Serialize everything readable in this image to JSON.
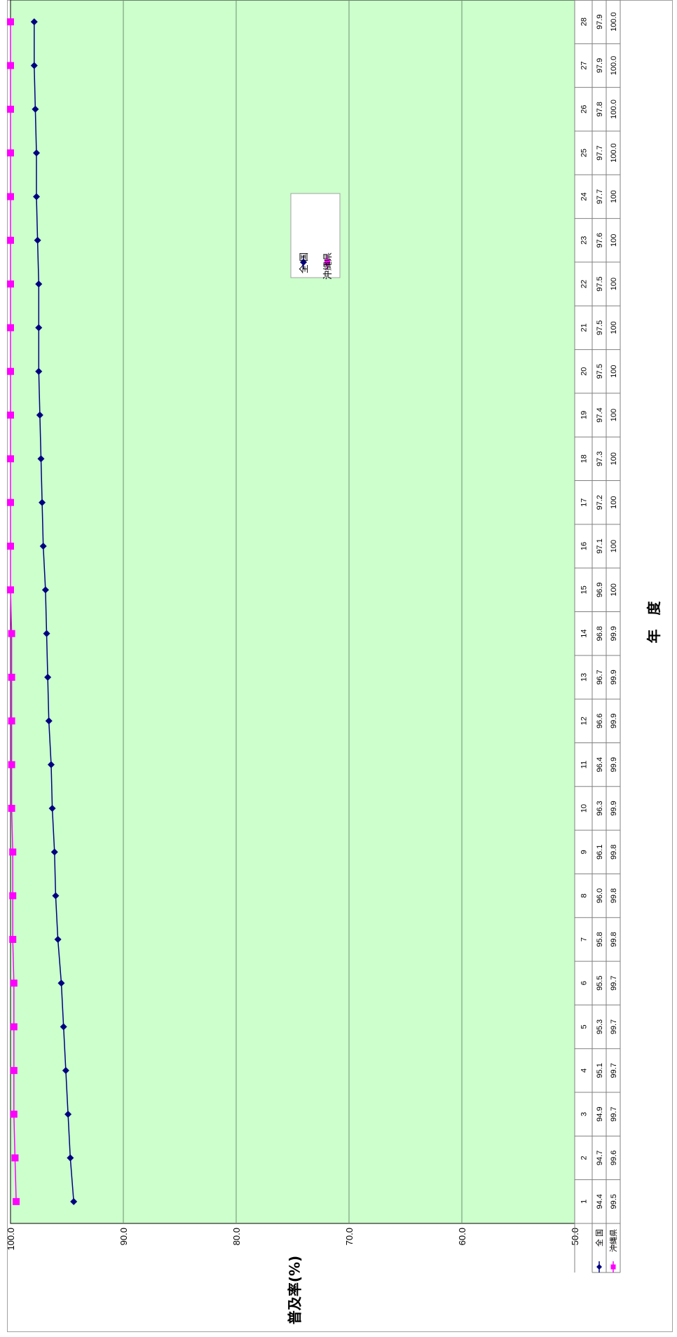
{
  "chart_data": {
    "type": "line",
    "orientation": "rotated-90-clockwise",
    "x_title": "年　度",
    "y_title": "普及率(%)",
    "y_ticks": [
      "100.0",
      "90.0",
      "80.0",
      "70.0",
      "60.0",
      "50.0"
    ],
    "ylim": [
      50,
      100
    ],
    "grid": true,
    "plot_background": "#ccffcc",
    "categories": [
      "1",
      "2",
      "3",
      "4",
      "5",
      "6",
      "7",
      "8",
      "9",
      "10",
      "11",
      "12",
      "13",
      "14",
      "15",
      "16",
      "17",
      "18",
      "19",
      "20",
      "21",
      "22",
      "23",
      "24",
      "25",
      "26",
      "27",
      "28"
    ],
    "series": [
      {
        "name": "全 国",
        "color": "#000080",
        "marker": "diamond",
        "values": [
          94.4,
          94.7,
          94.9,
          95.1,
          95.3,
          95.5,
          95.8,
          96.0,
          96.1,
          96.3,
          96.4,
          96.6,
          96.7,
          96.8,
          96.9,
          97.1,
          97.2,
          97.3,
          97.4,
          97.5,
          97.5,
          97.5,
          97.6,
          97.7,
          97.7,
          97.8,
          97.9,
          97.9
        ],
        "labels": [
          "94.4",
          "94.7",
          "94.9",
          "95.1",
          "95.3",
          "95.5",
          "95.8",
          "96.0",
          "96.1",
          "96.3",
          "96.4",
          "96.6",
          "96.7",
          "96.8",
          "96.9",
          "97.1",
          "97.2",
          "97.3",
          "97.4",
          "97.5",
          "97.5",
          "97.5",
          "97.6",
          "97.7",
          "97.7",
          "97.8",
          "97.9",
          "97.9"
        ]
      },
      {
        "name": "沖縄県",
        "color": "#ff00ff",
        "marker": "square",
        "values": [
          99.5,
          99.6,
          99.7,
          99.7,
          99.7,
          99.7,
          99.8,
          99.8,
          99.8,
          99.9,
          99.9,
          99.9,
          99.9,
          99.9,
          100,
          100,
          100,
          100,
          100,
          100,
          100,
          100,
          100,
          100,
          100,
          100.0,
          100.0,
          100.0
        ],
        "labels": [
          "99.5",
          "99.6",
          "99.7",
          "99.7",
          "99.7",
          "99.7",
          "99.8",
          "99.8",
          "99.8",
          "99.9",
          "99.9",
          "99.9",
          "99.9",
          "99.9",
          "100",
          "100",
          "100",
          "100",
          "100",
          "100",
          "100",
          "100",
          "100",
          "100",
          "100.0",
          "100.0",
          "100.0",
          "100.0"
        ]
      }
    ],
    "legend_position": "upper-middle"
  }
}
